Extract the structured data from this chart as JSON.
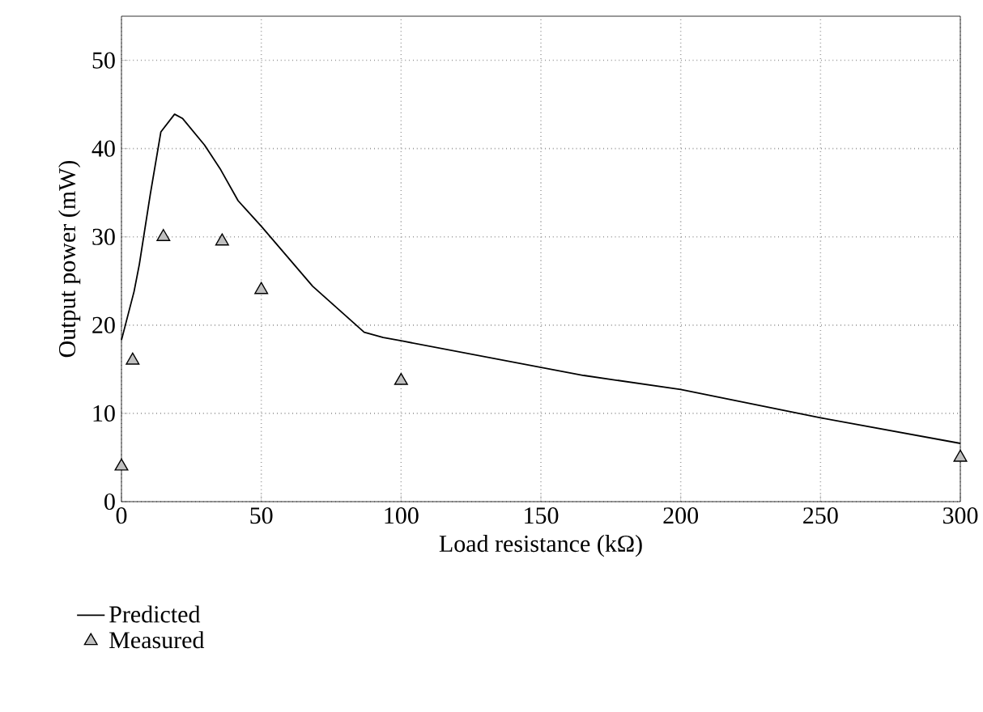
{
  "chart_data": {
    "type": "line",
    "xlabel": "Load resistance (kΩ)",
    "ylabel": "Output power (mW)",
    "xlim": [
      0,
      300
    ],
    "ylim": [
      0,
      55
    ],
    "xticks": [
      0,
      50,
      100,
      150,
      200,
      250,
      300
    ],
    "yticks": [
      0,
      10,
      20,
      30,
      40,
      50
    ],
    "grid": true,
    "legend": "bottom left",
    "series": [
      {
        "name": "Predicted",
        "color": "#000000",
        "marker": "none",
        "line_style": "solid",
        "x": [
          0,
          4.5,
          6.4,
          10.3,
          14.1,
          19,
          21.9,
          29.7,
          35.5,
          41.7,
          50,
          68.4,
          86.8,
          93.6,
          100.4,
          165.3,
          200,
          250,
          300
        ],
        "values": [
          18.3,
          23.8,
          26.9,
          34.8,
          41.9,
          43.9,
          43.4,
          40.4,
          37.6,
          34.1,
          31.2,
          24.4,
          19.2,
          18.6,
          18.2,
          14.3,
          12.7,
          9.5,
          6.6
        ]
      },
      {
        "name": "Measured",
        "type": "scatter",
        "color": "#bfbfbf",
        "marker": "triangle",
        "x": [
          0,
          4,
          15,
          36,
          50,
          100,
          300
        ],
        "values": [
          4,
          16,
          30,
          29.5,
          24,
          13.7,
          5
        ]
      }
    ]
  }
}
